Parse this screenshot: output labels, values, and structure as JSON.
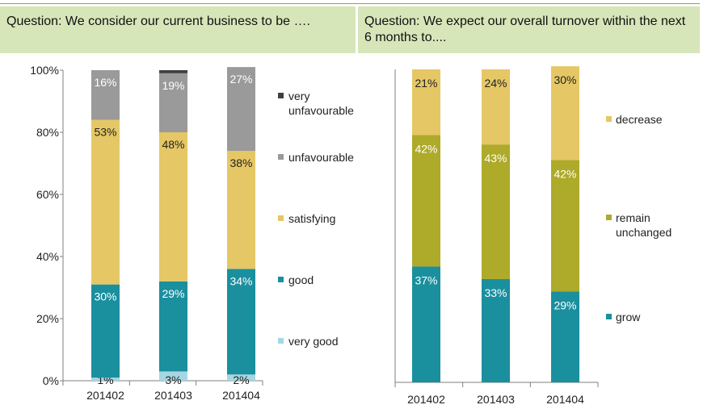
{
  "colors": {
    "header_bg": "#d6e6b9",
    "very_unfavourable": "#404040",
    "unfavourable": "#9a9a9a",
    "satisfying": "#e5c765",
    "good": "#1a8f9e",
    "very_good": "#a7d6e2",
    "decrease": "#e5c765",
    "remain_unchanged": "#aeaa2a",
    "grow": "#1a8f9e"
  },
  "chart_data": [
    {
      "type": "bar",
      "stacked": true,
      "title": "Question: We consider our current business to be ….",
      "categories": [
        "201402",
        "201403",
        "201404"
      ],
      "ylim": [
        0,
        100
      ],
      "yticks": [
        "0%",
        "20%",
        "40%",
        "60%",
        "80%",
        "100%"
      ],
      "legend_position": "right",
      "series": [
        {
          "name": "very good",
          "values": [
            1,
            3,
            2
          ],
          "labels": [
            "1%",
            "3%",
            "2%"
          ],
          "color": "#a7d6e2"
        },
        {
          "name": "good",
          "values": [
            30,
            29,
            34
          ],
          "labels": [
            "30%",
            "29%",
            "34%"
          ],
          "color": "#1a8f9e"
        },
        {
          "name": "satisfying",
          "values": [
            53,
            48,
            38
          ],
          "labels": [
            "53%",
            "48%",
            "38%"
          ],
          "color": "#e5c765"
        },
        {
          "name": "unfavourable",
          "values": [
            16,
            19,
            27
          ],
          "labels": [
            "16%",
            "19%",
            "27%"
          ],
          "color": "#9a9a9a"
        },
        {
          "name": "very unfavourable",
          "values": [
            0,
            1,
            0
          ],
          "labels": [
            "",
            "",
            ""
          ],
          "color": "#404040"
        }
      ]
    },
    {
      "type": "bar",
      "stacked": true,
      "title": "Question: We expect our overall turnover within the next 6 months to....",
      "categories": [
        "201402",
        "201403",
        "201404"
      ],
      "ylim": [
        0,
        100
      ],
      "legend_position": "right",
      "series": [
        {
          "name": "grow",
          "values": [
            37,
            33,
            29
          ],
          "labels": [
            "37%",
            "33%",
            "29%"
          ],
          "color": "#1a8f9e"
        },
        {
          "name": "remain unchanged",
          "values": [
            42,
            43,
            42
          ],
          "labels": [
            "42%",
            "43%",
            "42%"
          ],
          "color": "#aeaa2a"
        },
        {
          "name": "decrease",
          "values": [
            21,
            24,
            30
          ],
          "labels": [
            "21%",
            "24%",
            "30%"
          ],
          "color": "#e5c765"
        }
      ]
    }
  ]
}
